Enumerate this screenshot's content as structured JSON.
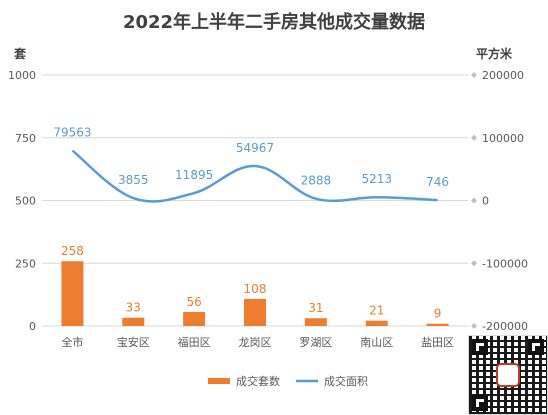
{
  "chart_data": {
    "type": "bar+line",
    "title": "2022年上半年二手房其他成交量数据",
    "left_axis_unit": "套",
    "right_axis_unit": "平方米",
    "categories": [
      "全市",
      "宝安区",
      "福田区",
      "龙岗区",
      "罗湖区",
      "南山区",
      "盐田区"
    ],
    "left_ticks": [
      "1000",
      "750",
      "500",
      "250",
      "0"
    ],
    "right_ticks": [
      "200000",
      "100000",
      "0",
      "-100000",
      "-200000"
    ],
    "ylim_left": [
      0,
      1000
    ],
    "ylim_right": [
      -200000,
      200000
    ],
    "series": [
      {
        "name": "成交套数",
        "type": "bar",
        "axis": "left",
        "color": "#ed7d31",
        "values": [
          258,
          33,
          56,
          108,
          31,
          21,
          9
        ]
      },
      {
        "name": "成交面积",
        "type": "line",
        "axis": "right",
        "color": "#5b9bd5",
        "values": [
          79563,
          3855,
          11895,
          54967,
          2888,
          5213,
          746
        ]
      }
    ],
    "grid": true,
    "legend_position": "bottom"
  },
  "colors": {
    "bar": "#ed7d31",
    "line": "#5b9bd5",
    "grid": "#d9d9d9",
    "axis_text": "#595959",
    "title": "#404040"
  }
}
